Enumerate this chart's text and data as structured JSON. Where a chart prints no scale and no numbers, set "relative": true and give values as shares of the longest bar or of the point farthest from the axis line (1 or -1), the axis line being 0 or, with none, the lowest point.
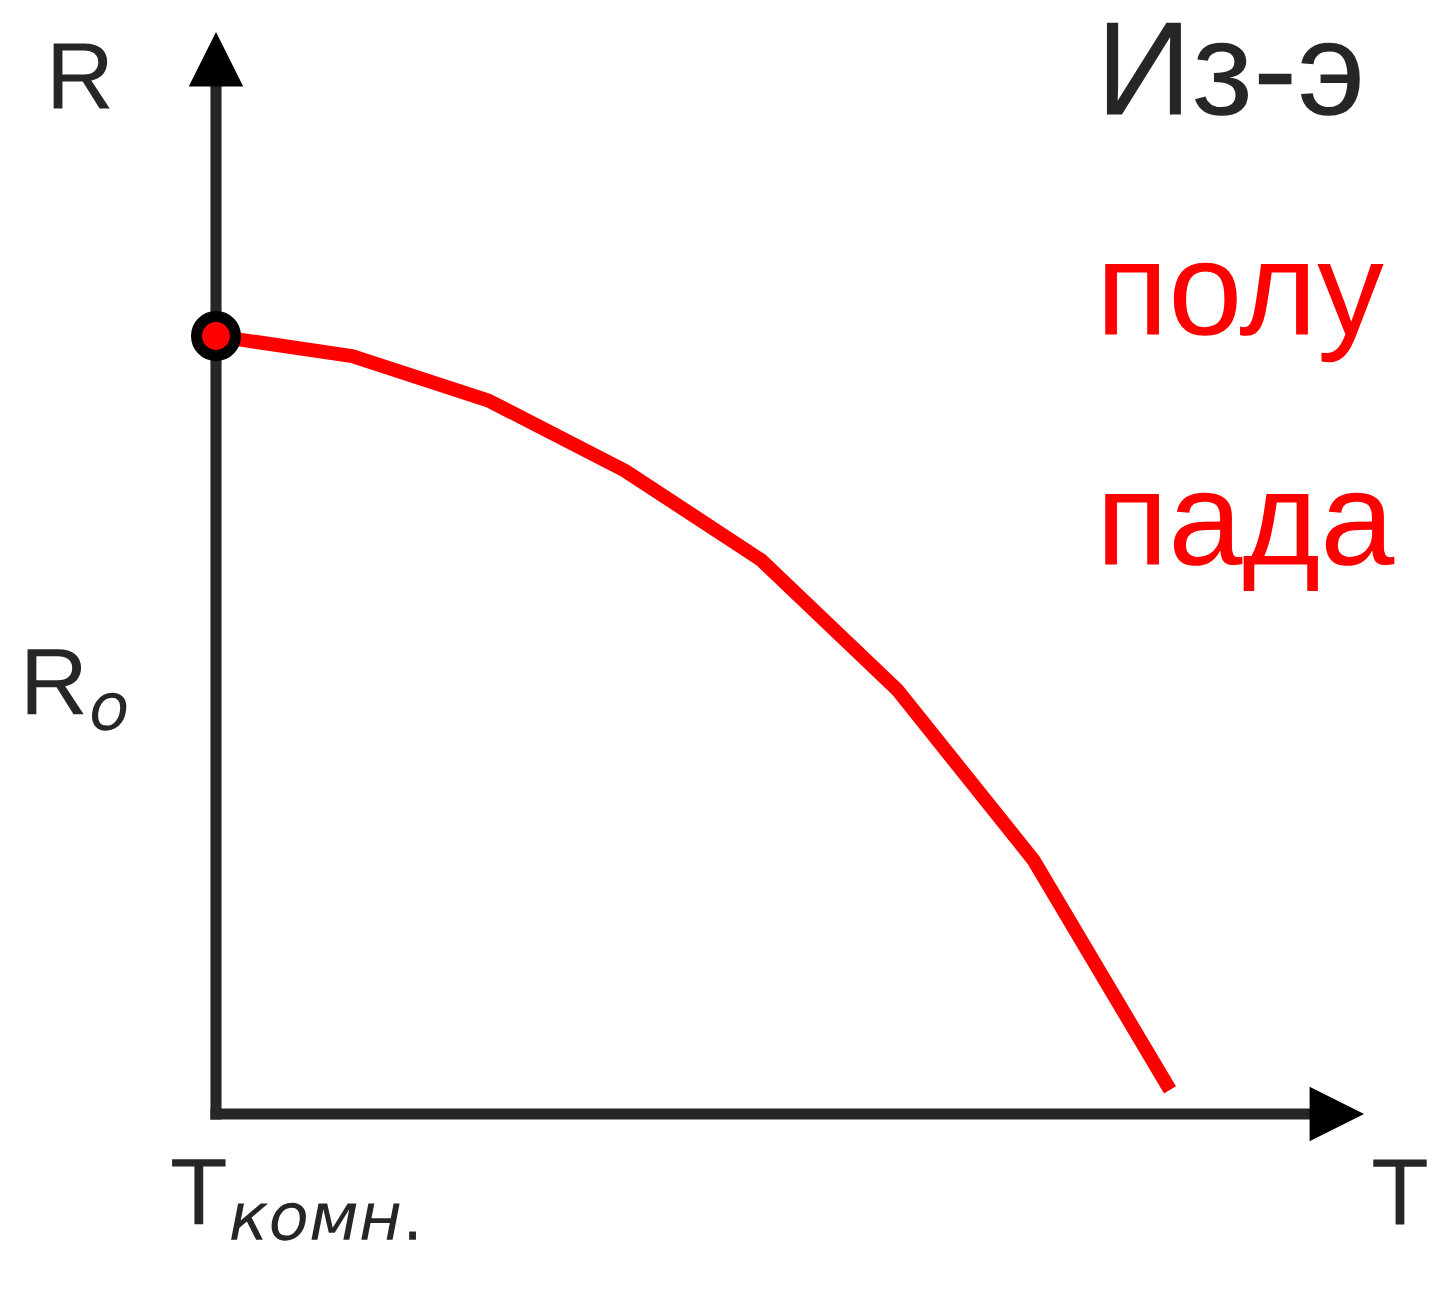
{
  "chart_data": {
    "type": "line",
    "title": "Из-э",
    "subtitle": "полу\nпада",
    "xlabel": "T",
    "ylabel": "R",
    "relative": true,
    "categories": [
      null,
      null,
      null,
      null,
      null,
      null,
      null,
      null
    ],
    "series": [
      {
        "color": "#ff0000",
        "values": [
          1.0,
          0.974,
          0.917,
          0.827,
          0.712,
          0.545,
          0.326,
          0.031
        ]
      }
    ],
    "annotations": [
      "R$_{o}$",
      "T$_{комн.}$"
    ]
  }
}
